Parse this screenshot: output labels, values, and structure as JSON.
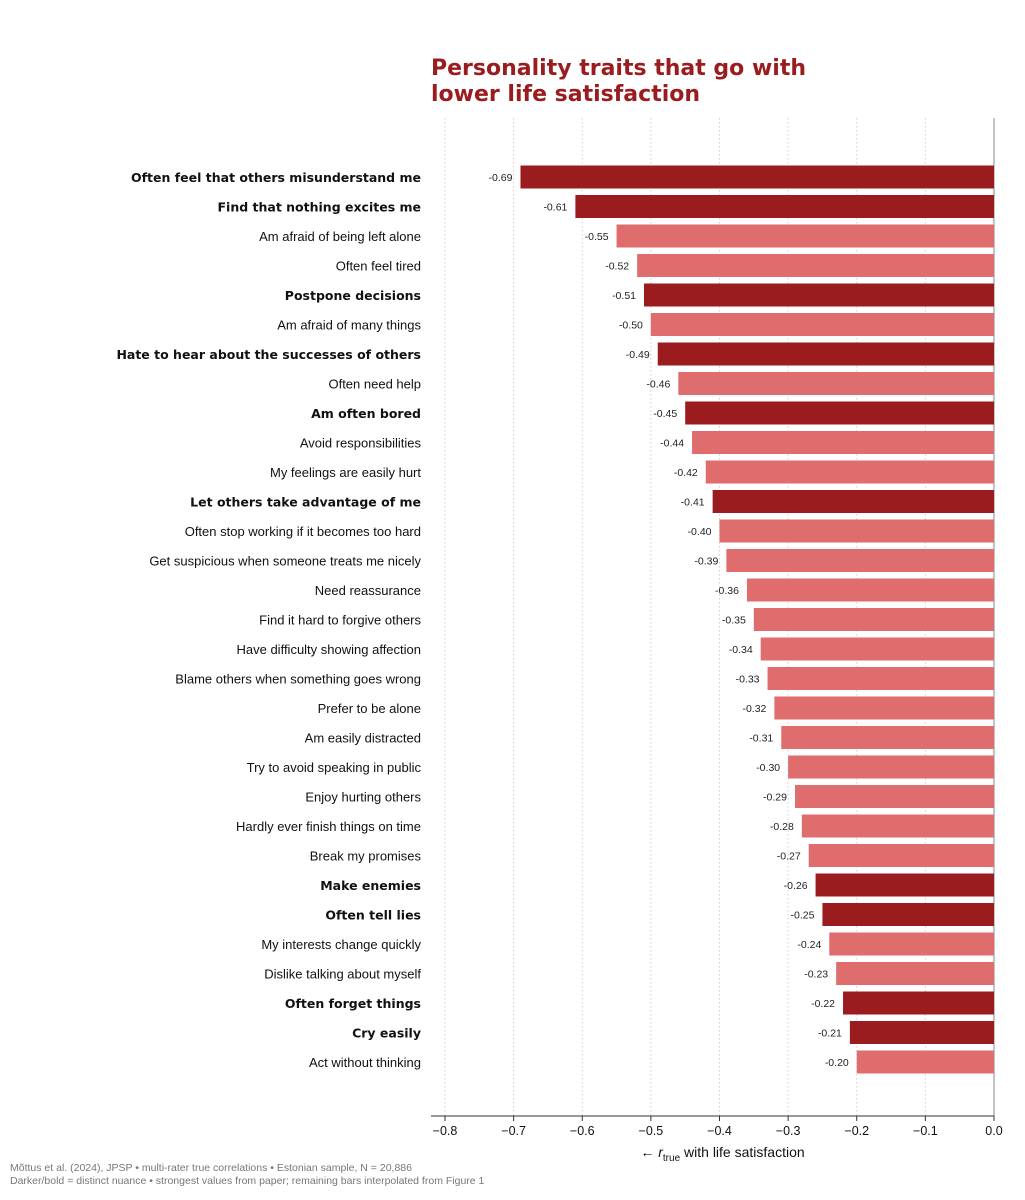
{
  "title_lines": [
    "Personality traits that go with",
    "lower life satisfaction"
  ],
  "footer_lines": [
    "Mõttus et al. (2024), JPSP  •  multi-rater true correlations  •  Estonian sample, N = 20,886",
    "Darker/bold = distinct nuance  •  strongest values from paper; remaining bars interpolated from Figure 1"
  ],
  "colors": {
    "title": "#9b1c1f",
    "dark_bar": "#9b1c1f",
    "light_bar": "#e06d6d",
    "grid": "#d0d0d0",
    "axis": "#333333"
  },
  "chart_data": {
    "type": "bar",
    "orientation": "horizontal",
    "title": "Personality traits that go with lower life satisfaction",
    "xlabel_prefix": "← ",
    "xlabel_var": "r",
    "xlabel_sub": "true",
    "xlabel_suffix": " with life satisfaction",
    "xlim": [
      -0.8,
      0.0
    ],
    "xticks": [
      -0.8,
      -0.7,
      -0.6,
      -0.5,
      -0.4,
      -0.3,
      -0.2,
      -0.1,
      0.0
    ],
    "xtick_labels": [
      "−0.8",
      "−0.7",
      "−0.6",
      "−0.5",
      "−0.4",
      "−0.3",
      "−0.2",
      "−0.1",
      "0.0"
    ],
    "grid": "vertical dotted",
    "items": [
      {
        "label": "Often feel that others misunderstand me",
        "value": -0.69,
        "value_label": "-0.69",
        "distinct": true
      },
      {
        "label": "Find that nothing excites me",
        "value": -0.61,
        "value_label": "-0.61",
        "distinct": true
      },
      {
        "label": "Am afraid of being left alone",
        "value": -0.55,
        "value_label": "-0.55",
        "distinct": false
      },
      {
        "label": "Often feel tired",
        "value": -0.52,
        "value_label": "-0.52",
        "distinct": false
      },
      {
        "label": "Postpone decisions",
        "value": -0.51,
        "value_label": "-0.51",
        "distinct": true
      },
      {
        "label": "Am afraid of many things",
        "value": -0.5,
        "value_label": "-0.50",
        "distinct": false
      },
      {
        "label": "Hate to hear about the successes of others",
        "value": -0.49,
        "value_label": "-0.49",
        "distinct": true
      },
      {
        "label": "Often need help",
        "value": -0.46,
        "value_label": "-0.46",
        "distinct": false
      },
      {
        "label": "Am often bored",
        "value": -0.45,
        "value_label": "-0.45",
        "distinct": true
      },
      {
        "label": "Avoid responsibilities",
        "value": -0.44,
        "value_label": "-0.44",
        "distinct": false
      },
      {
        "label": "My feelings are easily hurt",
        "value": -0.42,
        "value_label": "-0.42",
        "distinct": false
      },
      {
        "label": "Let others take advantage of me",
        "value": -0.41,
        "value_label": "-0.41",
        "distinct": true
      },
      {
        "label": "Often stop working if it becomes too hard",
        "value": -0.4,
        "value_label": "-0.40",
        "distinct": false
      },
      {
        "label": "Get suspicious when someone treats me nicely",
        "value": -0.39,
        "value_label": "-0.39",
        "distinct": false
      },
      {
        "label": "Need reassurance",
        "value": -0.36,
        "value_label": "-0.36",
        "distinct": false
      },
      {
        "label": "Find it hard to forgive others",
        "value": -0.35,
        "value_label": "-0.35",
        "distinct": false
      },
      {
        "label": "Have difficulty showing affection",
        "value": -0.34,
        "value_label": "-0.34",
        "distinct": false
      },
      {
        "label": "Blame others when something goes wrong",
        "value": -0.33,
        "value_label": "-0.33",
        "distinct": false
      },
      {
        "label": "Prefer to be alone",
        "value": -0.32,
        "value_label": "-0.32",
        "distinct": false
      },
      {
        "label": "Am easily distracted",
        "value": -0.31,
        "value_label": "-0.31",
        "distinct": false
      },
      {
        "label": "Try to avoid speaking in public",
        "value": -0.3,
        "value_label": "-0.30",
        "distinct": false
      },
      {
        "label": "Enjoy hurting others",
        "value": -0.29,
        "value_label": "-0.29",
        "distinct": false
      },
      {
        "label": "Hardly ever finish things on time",
        "value": -0.28,
        "value_label": "-0.28",
        "distinct": false
      },
      {
        "label": "Break my promises",
        "value": -0.27,
        "value_label": "-0.27",
        "distinct": false
      },
      {
        "label": "Make enemies",
        "value": -0.26,
        "value_label": "-0.26",
        "distinct": true
      },
      {
        "label": "Often tell lies",
        "value": -0.25,
        "value_label": "-0.25",
        "distinct": true
      },
      {
        "label": "My interests change quickly",
        "value": -0.24,
        "value_label": "-0.24",
        "distinct": false
      },
      {
        "label": "Dislike talking about myself",
        "value": -0.23,
        "value_label": "-0.23",
        "distinct": false
      },
      {
        "label": "Often forget things",
        "value": -0.22,
        "value_label": "-0.22",
        "distinct": true
      },
      {
        "label": "Cry easily",
        "value": -0.21,
        "value_label": "-0.21",
        "distinct": true
      },
      {
        "label": "Act without thinking",
        "value": -0.2,
        "value_label": "-0.20",
        "distinct": false
      }
    ]
  }
}
